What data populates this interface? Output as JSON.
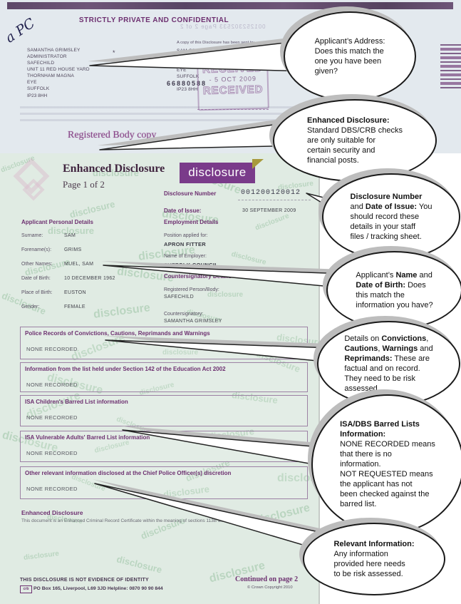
{
  "colors": {
    "heading_purple": "#6d3070",
    "logo_purple": "#7a3b8a",
    "logo_fold_yellow": "#a89a3c",
    "paper_blue": "#e3e9ee",
    "paper_green": "#e0ebe3",
    "watermark_green": "#7cb28a",
    "stamp_purple": "#8b5c96"
  },
  "scan": {
    "confidential_header": "STRICTLY PRIVATE AND CONFIDENTIAL",
    "handwriting": "a PC",
    "showthrough": "001252302533   Page 2 of 2",
    "sender_address": "SAMANTHA GRIMSLEY\nADMINISTRATOR\nSAFECHILD\nUNIT 11 RED HOUSE YARD\nTHORNHAM MAGNA\nEYE\nSUFFOLK",
    "sender_postcode": "IP23 8HH",
    "asterisk": "*",
    "reference_number": "66880588",
    "copy_note": "A copy of this Disclosure has been sent to:",
    "recipient_address": "SAM GRIMS\n\nTHORNHAM MAGNA\nEYE\nSUFFOLK\n\nIP23 8HH",
    "stamp_word": "RECEIVED",
    "stamp_date": "- 5 OCT 2009",
    "registered_body_copy": "Registered Body copy"
  },
  "watermark": {
    "word": "disclosure"
  },
  "certificate": {
    "title": "Enhanced Disclosure",
    "page": "Page 1 of 2",
    "logo_text": "disclosure",
    "disclosure_number_label": "Disclosure Number",
    "disclosure_number": "001200120012",
    "date_of_issue_label": "Date of Issue:",
    "date_of_issue": "30 SEPTEMBER 2009",
    "personal": {
      "heading": "Applicant Personal Details",
      "rows": [
        {
          "label": "Surname:",
          "value": "SAM"
        },
        {
          "label": "Forename(s):",
          "value": "GRIMS"
        },
        {
          "label": "Other Names:",
          "value": "MUEL, SAM"
        },
        {
          "label": "Date of Birth:",
          "value": "10 DECEMBER 1962"
        },
        {
          "label": "Place of Birth:",
          "value": "EUSTON"
        },
        {
          "label": "Gender:",
          "value": "FEMALE"
        }
      ]
    },
    "employment": {
      "heading": "Employment Details",
      "position_label": "Position applied for:",
      "position": "APRON FITTER",
      "employer_label": "Name of Employer:",
      "employer": "SUFFOLK COUNCIL"
    },
    "countersignatory": {
      "heading": "Countersignatory Details",
      "body_label": "Registered Person/Body:",
      "body": "SAFECHILD",
      "counter_label": "Countersignatory:",
      "counter": "SAMANTHA GRIMSLEY"
    },
    "sections": [
      {
        "title": "Police Records of Convictions, Cautions, Reprimands and Warnings",
        "value": "NONE RECORDED"
      },
      {
        "title": "Information from the list held under Section 142 of the Education Act 2002",
        "value": "NONE RECORDED"
      },
      {
        "title": "ISA Children's Barred List information",
        "value": "NONE RECORDED"
      },
      {
        "title": "ISA Vulnerable Adults' Barred List information",
        "value": "NONE RECORDED"
      },
      {
        "title": "Other relevant information disclosed at the Chief Police Officer(s) discretion",
        "value": "NONE RECORDED"
      }
    ],
    "footer_heading": "Enhanced Disclosure",
    "footer_text": "This document is an Enhanced Criminal Record Certificate within the meaning of sections 113B and 116 of the",
    "footer_notice": "THIS DISCLOSURE IS NOT EVIDENCE OF IDENTITY",
    "footer_logo": "crb",
    "footer_address": "PO Box 165, Liverpool, L69 3JD  Helpline: 0870 90 90 844",
    "continued": "Continued on page 2",
    "copyright": "© Crown Copyright 2010"
  },
  "bubbles": [
    {
      "segments": [
        [
          "Applicant’s  Address:\nDoes this match the\none you have been\ngiven?",
          false
        ]
      ]
    },
    {
      "segments": [
        [
          "Enhanced Disclosure:",
          true
        ],
        [
          "\nStandard DBS/CRB checks\nare only suitable for\ncertain security and\nfinancial posts.",
          false
        ]
      ]
    },
    {
      "segments": [
        [
          "Disclosure Number",
          true
        ],
        [
          "\nand ",
          false
        ],
        [
          "Date of Issue:",
          true
        ],
        [
          " You\nshould record these\ndetails in your staff\nfiles / tracking sheet.",
          false
        ]
      ]
    },
    {
      "segments": [
        [
          "Applicant’s ",
          false
        ],
        [
          "Name",
          true
        ],
        [
          " and\n",
          false
        ],
        [
          "Date of Birth:",
          true
        ],
        [
          " Does\nthis match the\ninformation you have?",
          false
        ]
      ]
    },
    {
      "segments": [
        [
          "Details on ",
          false
        ],
        [
          "Convictions",
          true
        ],
        [
          ",\n",
          false
        ],
        [
          "Cautions",
          true
        ],
        [
          ", ",
          false
        ],
        [
          "Warnings",
          true
        ],
        [
          " and\n",
          false
        ],
        [
          "Reprimands:",
          true
        ],
        [
          " These are\nfactual and on record.\nThey need to be risk\nassessed",
          false
        ]
      ]
    },
    {
      "segments": [
        [
          "ISA/DBS Barred Lists\nInformation:",
          true
        ],
        [
          "\nNONE RECORDED means\nthat there is no\ninformation.\nNOT REQUESTED means\nthe applicant has not\nbeen checked against the\nbarred list.",
          false
        ]
      ]
    },
    {
      "segments": [
        [
          "Relevant Information:",
          true
        ],
        [
          "\nAny information\nprovided here needs\nto be risk assessed.",
          false
        ]
      ]
    }
  ]
}
